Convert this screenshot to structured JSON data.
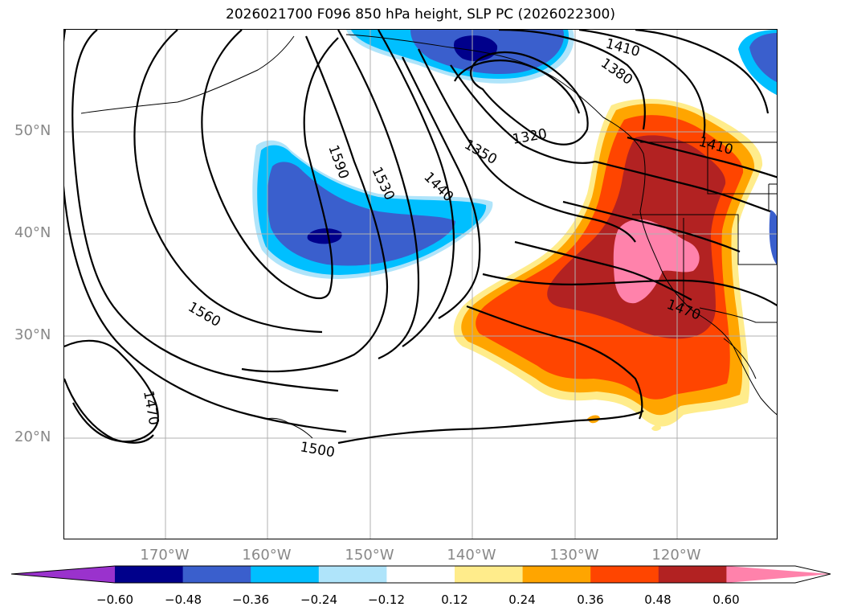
{
  "title": "2026021700 F096 850 hPa height, SLP PC (2026022300)",
  "lat_labels": [
    {
      "text": "50°N",
      "deg": 50
    },
    {
      "text": "40°N",
      "deg": 40
    },
    {
      "text": "30°N",
      "deg": 30
    },
    {
      "text": "20°N",
      "deg": 20
    }
  ],
  "lon_labels": [
    {
      "text": "170°W",
      "deg": -170
    },
    {
      "text": "160°W",
      "deg": -160
    },
    {
      "text": "150°W",
      "deg": -150
    },
    {
      "text": "140°W",
      "deg": -140
    },
    {
      "text": "130°W",
      "deg": -130
    },
    {
      "text": "120°W",
      "deg": -120
    }
  ],
  "contour_labels": [
    "1410",
    "1380",
    "1320",
    "1350",
    "1440",
    "1530",
    "1590",
    "1410",
    "1470",
    "1560",
    "1470",
    "1500"
  ],
  "colorbar": {
    "ticks": [
      "−0.60",
      "−0.48",
      "−0.36",
      "−0.24",
      "−0.12",
      "0.12",
      "0.24",
      "0.36",
      "0.48",
      "0.60"
    ],
    "colors": [
      "#9a32cd",
      "#00008b",
      "#3a5fcd",
      "#00bfff",
      "#afe4fa",
      "#ffffff",
      "#ffec8b",
      "#ffa500",
      "#ff4500",
      "#b22222",
      "#ff82ab"
    ]
  }
}
